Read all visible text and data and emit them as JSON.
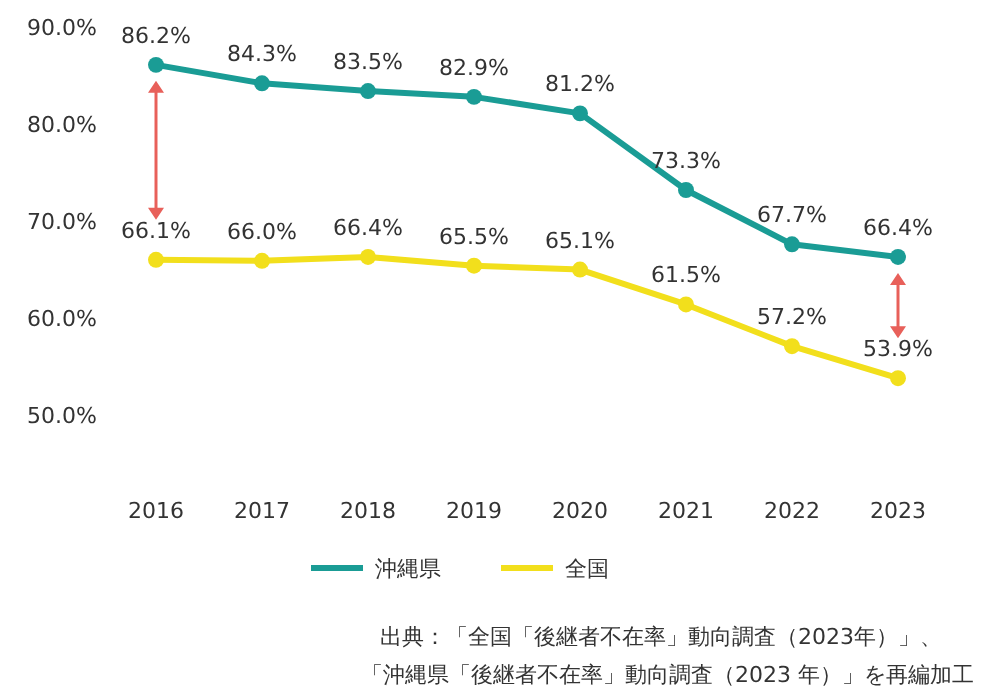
{
  "chart_data": {
    "type": "line",
    "categories": [
      "2016",
      "2017",
      "2018",
      "2019",
      "2020",
      "2021",
      "2022",
      "2023"
    ],
    "series": [
      {
        "name": "沖縄県",
        "color": "#1a9c95",
        "values": [
          86.2,
          84.3,
          83.5,
          82.9,
          81.2,
          73.3,
          67.7,
          66.4
        ],
        "value_labels": [
          "86.2%",
          "84.3%",
          "83.5%",
          "82.9%",
          "81.2%",
          "73.3%",
          "67.7%",
          "66.4%"
        ]
      },
      {
        "name": "全国",
        "color": "#f2df1c",
        "values": [
          66.1,
          66.0,
          66.4,
          65.5,
          65.1,
          61.5,
          57.2,
          53.9
        ],
        "value_labels": [
          "66.1%",
          "66.0%",
          "66.4%",
          "65.5%",
          "65.1%",
          "61.5%",
          "57.2%",
          "53.9%"
        ]
      }
    ],
    "ylim": [
      50,
      90
    ],
    "yticks": [
      {
        "value": 50,
        "label": "50.0%"
      },
      {
        "value": 60,
        "label": "60.0%"
      },
      {
        "value": 70,
        "label": "70.0%"
      },
      {
        "value": 80,
        "label": "80.0%"
      },
      {
        "value": 90,
        "label": "90.0%"
      }
    ],
    "marker": "circle",
    "legend": "bottom",
    "grid": false,
    "annotations": [
      "出典：「全国「後継者不在率」動向調査（2023年）」、",
      "「沖縄県「後継者不在率」動向調査（2023 年）」を再編加工"
    ]
  }
}
